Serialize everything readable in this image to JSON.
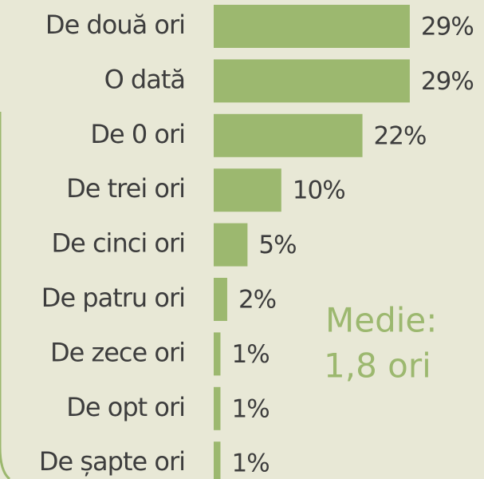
{
  "chart_data": {
    "type": "bar",
    "orientation": "horizontal",
    "categories": [
      "De două ori",
      "O dată",
      "De 0 ori",
      "De trei ori",
      "De cinci ori",
      "De patru ori",
      "De zece ori",
      "De opt ori",
      "De șapte ori"
    ],
    "values": [
      29,
      29,
      22,
      10,
      5,
      2,
      1,
      1,
      1
    ],
    "value_labels": [
      "29%",
      "29%",
      "22%",
      "10%",
      "5%",
      "2%",
      "1%",
      "1%",
      "1%"
    ],
    "color": "#9cb86f",
    "annotation": [
      "Medie:",
      "1,8 ori"
    ]
  }
}
